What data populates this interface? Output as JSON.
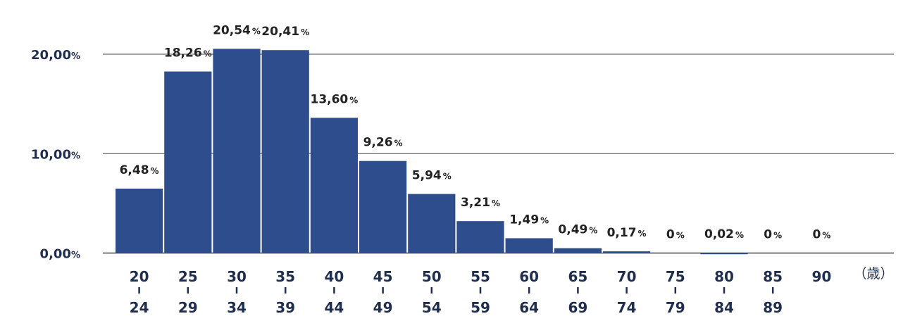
{
  "chart_data": {
    "type": "bar",
    "categories": [
      {
        "start": "20",
        "end": "24"
      },
      {
        "start": "25",
        "end": "29"
      },
      {
        "start": "30",
        "end": "34"
      },
      {
        "start": "35",
        "end": "39"
      },
      {
        "start": "40",
        "end": "44"
      },
      {
        "start": "45",
        "end": "49"
      },
      {
        "start": "50",
        "end": "54"
      },
      {
        "start": "55",
        "end": "59"
      },
      {
        "start": "60",
        "end": "64"
      },
      {
        "start": "65",
        "end": "69"
      },
      {
        "start": "70",
        "end": "74"
      },
      {
        "start": "75",
        "end": "79"
      },
      {
        "start": "80",
        "end": "84"
      },
      {
        "start": "85",
        "end": "89"
      },
      {
        "start": "90",
        "end": ""
      }
    ],
    "values": [
      6.48,
      18.26,
      20.54,
      20.41,
      13.6,
      9.26,
      5.94,
      3.21,
      1.49,
      0.49,
      0.17,
      0,
      0.02,
      0,
      0
    ],
    "data_labels": [
      "6,48",
      "18,26",
      "20,54",
      "20,41",
      "13,60",
      "9,26",
      "5,94",
      "3,21",
      "1,49",
      "0,49",
      "0,17",
      "0",
      "0,02",
      "0",
      "0"
    ],
    "data_label_unit": "%",
    "yticks": [
      {
        "value": 0,
        "label": "0,00"
      },
      {
        "value": 10,
        "label": "10,00"
      },
      {
        "value": 20,
        "label": "20,00"
      }
    ],
    "ytick_unit": "%",
    "x_unit_label": "（歳）",
    "ylim": [
      0,
      22
    ],
    "grid": true,
    "colors": {
      "bar": "#2e4d8c",
      "grid": "#444444",
      "text": "#1f2d4f"
    }
  }
}
